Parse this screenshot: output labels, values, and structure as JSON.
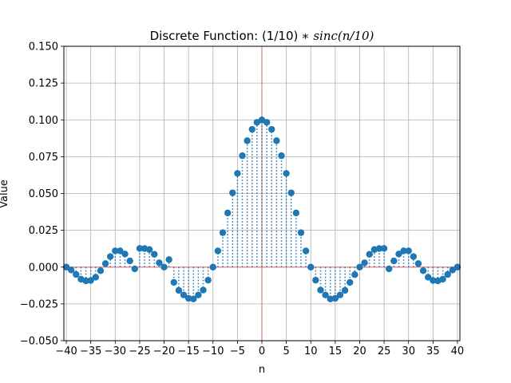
{
  "chart_data": {
    "type": "scatter",
    "title_plain": "Discrete Function: (1/10)",
    "title_math": "∗ sinc(n/10)",
    "xlabel": "n",
    "ylabel": "Value",
    "xlim": [
      -40.5,
      40.5
    ],
    "ylim": [
      -0.05,
      0.15
    ],
    "xticks": [
      -40,
      -35,
      -30,
      -25,
      -20,
      -15,
      -10,
      -5,
      0,
      5,
      10,
      15,
      20,
      25,
      30,
      35,
      40
    ],
    "yticks": [
      -0.05,
      -0.025,
      0.0,
      0.025,
      0.05,
      0.075,
      0.1,
      0.125,
      0.15
    ],
    "ytick_labels": [
      "−0.050",
      "−0.025",
      "0.000",
      "0.025",
      "0.050",
      "0.075",
      "0.100",
      "0.125",
      "0.150"
    ],
    "xtick_labels": [
      "−40",
      "−35",
      "−30",
      "−25",
      "−20",
      "−15",
      "−10",
      "−5",
      "0",
      "5",
      "10",
      "15",
      "20",
      "25",
      "30",
      "35",
      "40"
    ],
    "grid": true,
    "function": "(1/10)*sinc(n/10)",
    "n_range": [
      -40,
      40
    ],
    "marker_color": "#1f77b4",
    "stem_color": "#1f77b4",
    "zero_line_color": "#e08080",
    "series": [
      {
        "x": [
          -40,
          -39,
          -38,
          -37,
          -36,
          -35,
          -34,
          -33,
          -32,
          -31,
          -30,
          -29,
          -28,
          -27,
          -26,
          -25,
          -24,
          -23,
          -22,
          -21,
          -20,
          -19,
          -18,
          -17,
          -16,
          -15,
          -14,
          -13,
          -12,
          -11,
          -10,
          -9,
          -8,
          -7,
          -6,
          -5,
          -4,
          -3,
          -2,
          -1,
          0,
          1,
          2,
          3,
          4,
          5,
          6,
          7,
          8,
          9,
          10,
          11,
          12,
          13,
          14,
          15,
          16,
          17,
          18,
          19,
          20,
          21,
          22,
          23,
          24,
          25,
          26,
          27,
          28,
          29,
          30,
          31,
          32,
          33,
          34,
          35,
          36,
          37,
          38,
          39,
          40
        ],
        "values": [
          0.0,
          -0.00197,
          -0.005,
          -0.0082,
          -0.00935,
          -0.00909,
          -0.00685,
          -0.00245,
          0.00238,
          0.00717,
          0.01103,
          0.01105,
          0.00892,
          0.0042,
          -0.00119,
          0.0127,
          0.01261,
          0.01193,
          0.00868,
          0.00294,
          0.0,
          0.00513,
          -0.01039,
          -0.0158,
          -0.01891,
          -0.02122,
          -0.02162,
          -0.01892,
          -0.01559,
          -0.00888,
          0.0,
          0.01098,
          0.02339,
          0.03679,
          0.05046,
          0.06366,
          0.07568,
          0.08584,
          0.09355,
          0.09836,
          0.1,
          0.09836,
          0.09355,
          0.08584,
          0.07568,
          0.06366,
          0.05046,
          0.03679,
          0.02339,
          0.01098,
          0.0,
          -0.00888,
          -0.01559,
          -0.01892,
          -0.02162,
          -0.02122,
          -0.01891,
          -0.0158,
          -0.01039,
          -0.00513,
          0.0,
          0.00294,
          0.00868,
          0.01193,
          0.01261,
          0.0127,
          -0.00119,
          0.0042,
          0.00892,
          0.01105,
          0.01103,
          0.00717,
          0.00238,
          -0.00245,
          -0.00685,
          -0.00909,
          -0.00935,
          -0.0082,
          -0.005,
          -0.00197,
          0.0
        ]
      }
    ]
  }
}
